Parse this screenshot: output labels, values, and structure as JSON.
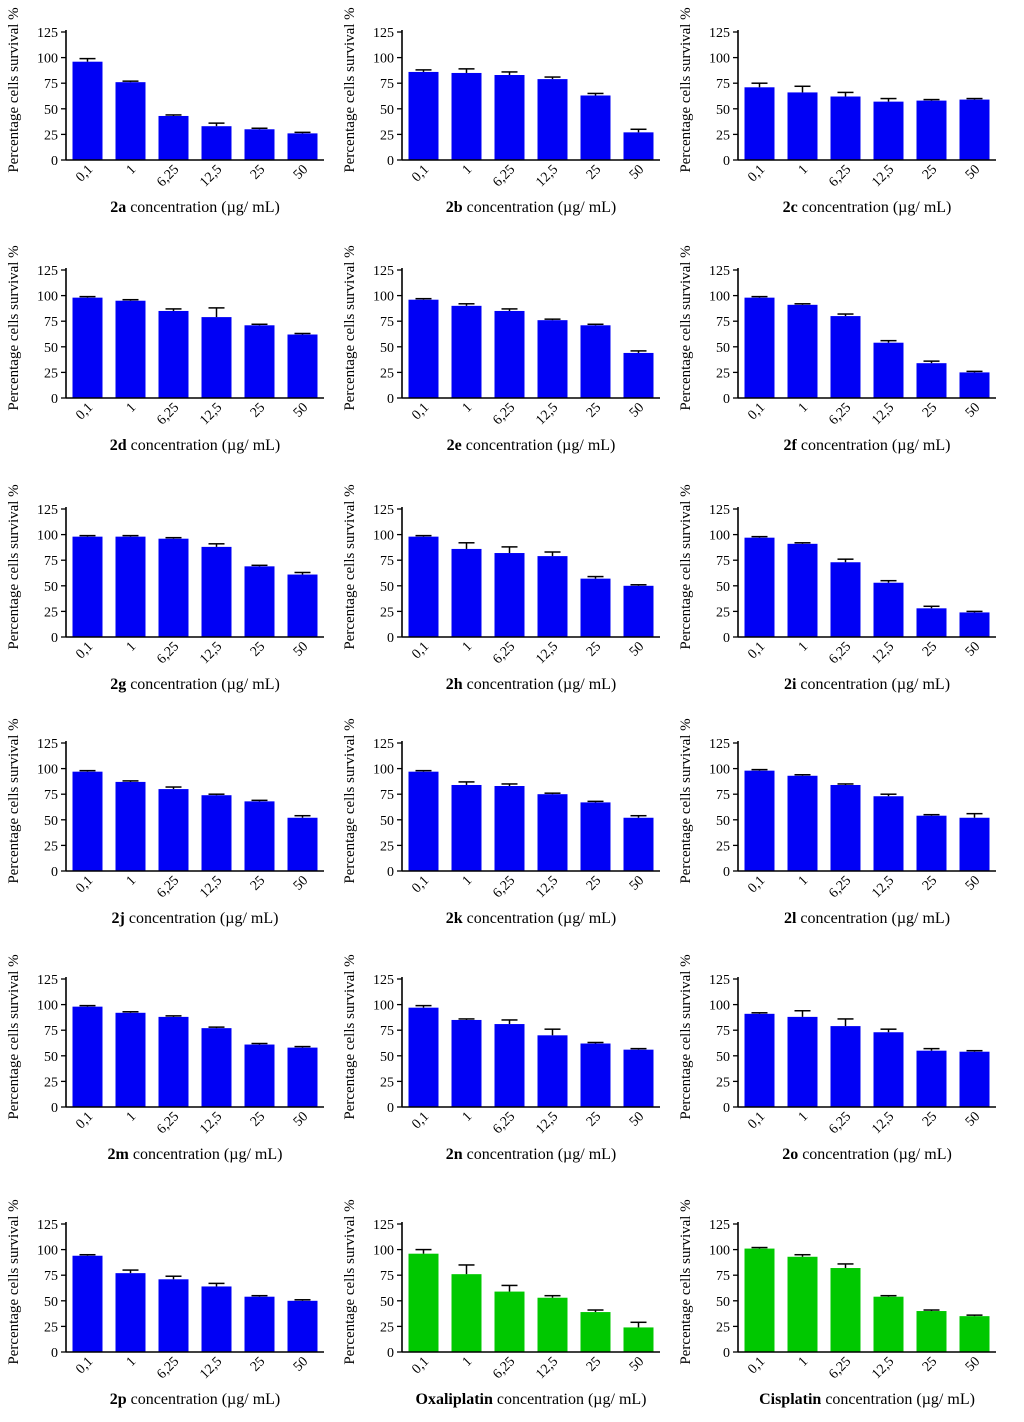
{
  "figure": {
    "ylabel": "Percentage cells survival %",
    "xlabel_suffix": "concentration (µg/ mL)",
    "categories": [
      "0,1",
      "1",
      "6,25",
      "12,5",
      "25",
      "50"
    ],
    "yticks": [
      "0",
      "25",
      "50",
      "75",
      "100",
      "125"
    ],
    "colors": {
      "compound": "#0000f5",
      "reference": "#00c800",
      "axis": "#000000"
    }
  },
  "chart_data": [
    {
      "type": "bar",
      "compound": "2a",
      "xlabel": "2a concentration (µg/ mL)",
      "ylabel": "Percentage cells survival %",
      "categories": [
        "0,1",
        "1",
        "6,25",
        "12,5",
        "25",
        "50"
      ],
      "values": [
        96,
        76,
        43,
        33,
        30,
        26
      ],
      "errors": [
        3,
        1,
        1,
        3,
        1,
        1
      ],
      "ylim": [
        0,
        125
      ],
      "color": "blue"
    },
    {
      "type": "bar",
      "compound": "2b",
      "xlabel": "2b concentration (µg/ mL)",
      "ylabel": "Percentage cells survival %",
      "categories": [
        "0,1",
        "1",
        "6,25",
        "12,5",
        "25",
        "50"
      ],
      "values": [
        86,
        85,
        83,
        79,
        63,
        27
      ],
      "errors": [
        2,
        4,
        3,
        2,
        2,
        3
      ],
      "ylim": [
        0,
        125
      ],
      "color": "blue"
    },
    {
      "type": "bar",
      "compound": "2c",
      "xlabel": "2c concentration (µg/ mL)",
      "ylabel": "Percentage cells survival %",
      "categories": [
        "0,1",
        "1",
        "6,25",
        "12,5",
        "25",
        "50"
      ],
      "values": [
        71,
        66,
        62,
        57,
        58,
        59
      ],
      "errors": [
        4,
        6,
        4,
        3,
        1,
        1
      ],
      "ylim": [
        0,
        125
      ],
      "color": "blue"
    },
    {
      "type": "bar",
      "compound": "2d",
      "xlabel": "2d concentration (µg/ mL)",
      "ylabel": "Percentage cells survival %",
      "categories": [
        "0,1",
        "1",
        "6,25",
        "12,5",
        "25",
        "50"
      ],
      "values": [
        98,
        95,
        85,
        79,
        71,
        62
      ],
      "errors": [
        1,
        1,
        2,
        9,
        1,
        1
      ],
      "ylim": [
        0,
        125
      ],
      "color": "blue"
    },
    {
      "type": "bar",
      "compound": "2e",
      "xlabel": "2e concentration (µg/ mL)",
      "ylabel": "Percentage cells survival %",
      "categories": [
        "0,1",
        "1",
        "6,25",
        "12,5",
        "25",
        "50"
      ],
      "values": [
        96,
        90,
        85,
        76,
        71,
        44
      ],
      "errors": [
        1,
        2,
        2,
        1,
        1,
        2
      ],
      "ylim": [
        0,
        125
      ],
      "color": "blue"
    },
    {
      "type": "bar",
      "compound": "2f",
      "xlabel": "2f concentration (µg/ mL)",
      "ylabel": "Percentage cells survival %",
      "categories": [
        "0,1",
        "1",
        "6,25",
        "12,5",
        "25",
        "50"
      ],
      "values": [
        98,
        91,
        80,
        54,
        34,
        25
      ],
      "errors": [
        1,
        1,
        2,
        2,
        2,
        1
      ],
      "ylim": [
        0,
        125
      ],
      "color": "blue"
    },
    {
      "type": "bar",
      "compound": "2g",
      "xlabel": "2g concentration (µg/ mL)",
      "ylabel": "Percentage cells survival %",
      "categories": [
        "0,1",
        "1",
        "6,25",
        "12,5",
        "25",
        "50"
      ],
      "values": [
        98,
        98,
        96,
        88,
        69,
        61
      ],
      "errors": [
        1,
        1,
        1,
        3,
        1,
        2
      ],
      "ylim": [
        0,
        125
      ],
      "color": "blue"
    },
    {
      "type": "bar",
      "compound": "2h",
      "xlabel": "2h concentration (µg/ mL)",
      "ylabel": "Percentage cells survival %",
      "categories": [
        "0,1",
        "1",
        "6,25",
        "12,5",
        "25",
        "50"
      ],
      "values": [
        98,
        86,
        82,
        79,
        57,
        50
      ],
      "errors": [
        1,
        6,
        6,
        4,
        2,
        1
      ],
      "ylim": [
        0,
        125
      ],
      "color": "blue"
    },
    {
      "type": "bar",
      "compound": "2i",
      "xlabel": "2i concentration (µg/ mL)",
      "ylabel": "Percentage cells survival %",
      "categories": [
        "0,1",
        "1",
        "6,25",
        "12,5",
        "25",
        "50"
      ],
      "values": [
        97,
        91,
        73,
        53,
        28,
        24
      ],
      "errors": [
        1,
        1,
        3,
        2,
        2,
        1
      ],
      "ylim": [
        0,
        125
      ],
      "color": "blue"
    },
    {
      "type": "bar",
      "compound": "2j",
      "xlabel": "2j concentration (µg/ mL)",
      "ylabel": "Percentage cells survival %",
      "categories": [
        "0,1",
        "1",
        "6,25",
        "12,5",
        "25",
        "50"
      ],
      "values": [
        97,
        87,
        80,
        74,
        68,
        52
      ],
      "errors": [
        1,
        1,
        2,
        1,
        1,
        2
      ],
      "ylim": [
        0,
        125
      ],
      "color": "blue"
    },
    {
      "type": "bar",
      "compound": "2k",
      "xlabel": "2k concentration (µg/ mL)",
      "ylabel": "Percentage cells survival %",
      "categories": [
        "0,1",
        "1",
        "6,25",
        "12,5",
        "25",
        "50"
      ],
      "values": [
        97,
        84,
        83,
        75,
        67,
        52
      ],
      "errors": [
        1,
        3,
        2,
        1,
        1,
        2
      ],
      "ylim": [
        0,
        125
      ],
      "color": "blue"
    },
    {
      "type": "bar",
      "compound": "2l",
      "xlabel": "2l concentration (µg/ mL)",
      "ylabel": "Percentage cells survival %",
      "categories": [
        "0,1",
        "1",
        "6,25",
        "12,5",
        "25",
        "50"
      ],
      "values": [
        98,
        93,
        84,
        73,
        54,
        52
      ],
      "errors": [
        1,
        1,
        1,
        2,
        1,
        4
      ],
      "ylim": [
        0,
        125
      ],
      "color": "blue"
    },
    {
      "type": "bar",
      "compound": "2m",
      "xlabel": "2m concentration (µg/ mL)",
      "ylabel": "Percentage cells survival %",
      "categories": [
        "0,1",
        "1",
        "6,25",
        "12,5",
        "25",
        "50"
      ],
      "values": [
        98,
        92,
        88,
        77,
        61,
        58
      ],
      "errors": [
        1,
        1,
        1,
        1,
        1,
        1
      ],
      "ylim": [
        0,
        125
      ],
      "color": "blue"
    },
    {
      "type": "bar",
      "compound": "2n",
      "xlabel": "2n concentration (µg/ mL)",
      "ylabel": "Percentage cells survival %",
      "categories": [
        "0,1",
        "1",
        "6,25",
        "12,5",
        "25",
        "50"
      ],
      "values": [
        97,
        85,
        81,
        70,
        62,
        56
      ],
      "errors": [
        2,
        1,
        4,
        6,
        1,
        1
      ],
      "ylim": [
        0,
        125
      ],
      "color": "blue"
    },
    {
      "type": "bar",
      "compound": "2o",
      "xlabel": "2o concentration (µg/ mL)",
      "ylabel": "Percentage cells survival %",
      "categories": [
        "0,1",
        "1",
        "6,25",
        "12,5",
        "25",
        "50"
      ],
      "values": [
        91,
        88,
        79,
        73,
        55,
        54
      ],
      "errors": [
        1,
        6,
        7,
        3,
        2,
        1
      ],
      "ylim": [
        0,
        125
      ],
      "color": "blue"
    },
    {
      "type": "bar",
      "compound": "2p",
      "xlabel": "2p concentration (µg/ mL)",
      "ylabel": "Percentage cells survival %",
      "categories": [
        "0,1",
        "1",
        "6,25",
        "12,5",
        "25",
        "50"
      ],
      "values": [
        94,
        77,
        71,
        64,
        54,
        50
      ],
      "errors": [
        1,
        3,
        3,
        3,
        1,
        1
      ],
      "ylim": [
        0,
        125
      ],
      "color": "blue"
    },
    {
      "type": "bar",
      "compound": "Oxaliplatin",
      "xlabel": "Oxaliplatin concentration (µg/ mL)",
      "ylabel": "Percentage cells survival %",
      "categories": [
        "0,1",
        "1",
        "6,25",
        "12,5",
        "25",
        "50"
      ],
      "values": [
        96,
        76,
        59,
        53,
        39,
        24
      ],
      "errors": [
        4,
        9,
        6,
        2,
        2,
        5
      ],
      "ylim": [
        0,
        125
      ],
      "color": "green"
    },
    {
      "type": "bar",
      "compound": "Cisplatin",
      "xlabel": "Cisplatin concentration (µg/ mL)",
      "ylabel": "Percentage cells survival %",
      "categories": [
        "0,1",
        "1",
        "6,25",
        "12,5",
        "25",
        "50"
      ],
      "values": [
        101,
        93,
        82,
        54,
        40,
        35
      ],
      "errors": [
        1,
        2,
        4,
        1,
        1,
        1
      ],
      "ylim": [
        0,
        125
      ],
      "color": "green"
    }
  ]
}
